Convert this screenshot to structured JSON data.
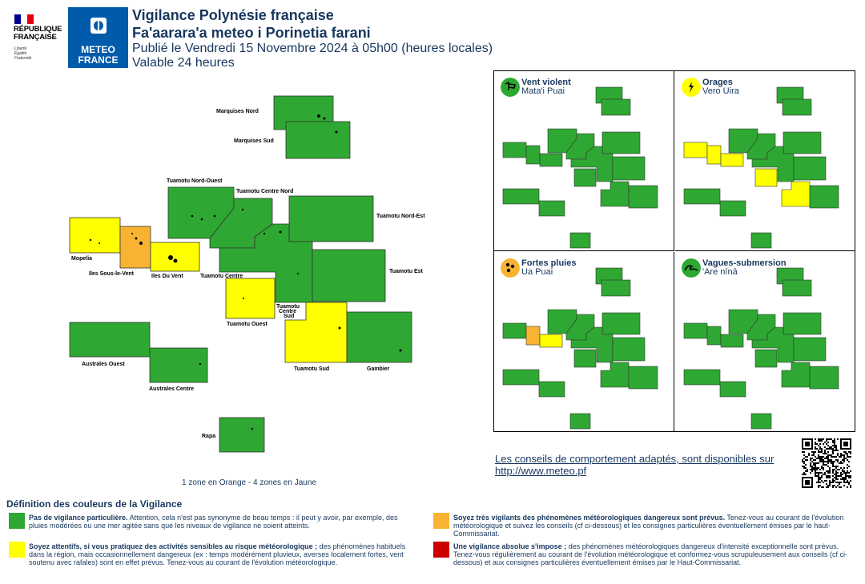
{
  "header": {
    "republique_lines": [
      "RÉPUBLIQUE",
      "FRANÇAISE"
    ],
    "republique_motto": [
      "Liberté",
      "Égalité",
      "Fraternité"
    ],
    "meteo_logo_lines": [
      "METEO",
      "FRANCE"
    ],
    "title_fr": "Vigilance Polynésie française",
    "title_tah": "Fa'aarara'a meteo i Porinetia farani",
    "published": "Publié le Vendredi 15 Novembre 2024 à 05h00 (heures locales)",
    "validity": "Valable 24 heures"
  },
  "colors": {
    "green": "#2ea832",
    "yellow": "#ffff00",
    "orange": "#f8b333",
    "red": "#cc0000",
    "text": "#17375e",
    "meteo_blue": "#005baa"
  },
  "zones": [
    {
      "name": "Marquises Nord",
      "level": "green"
    },
    {
      "name": "Marquises Sud",
      "level": "green"
    },
    {
      "name": "Tuamotu Nord-Ouest",
      "level": "green"
    },
    {
      "name": "Tuamotu Centre Nord",
      "level": "green"
    },
    {
      "name": "Tuamotu Nord-Est",
      "level": "green"
    },
    {
      "name": "Mopelia",
      "level": "yellow"
    },
    {
      "name": "Iles Sous-le-Vent",
      "level": "orange"
    },
    {
      "name": "Iles Du Vent",
      "level": "yellow"
    },
    {
      "name": "Tuamotu Centre",
      "level": "green"
    },
    {
      "name": "Tuamotu Est",
      "level": "green"
    },
    {
      "name": "Tuamotu Ouest",
      "level": "yellow"
    },
    {
      "name": "Tuamotu Centre Sud",
      "level": "green"
    },
    {
      "name": "Australes Ouest",
      "level": "green"
    },
    {
      "name": "Australes Centre",
      "level": "green"
    },
    {
      "name": "Tuamotu Sud",
      "level": "yellow"
    },
    {
      "name": "Gambier",
      "level": "green"
    },
    {
      "name": "Rapa",
      "level": "green"
    }
  ],
  "label_tuamotu_centre_sud": [
    "Tuamotu",
    "Centre",
    "Sud"
  ],
  "phenomena": [
    {
      "title": "Vent violent",
      "subtitle": "Mata'i Puai",
      "icon": "wind-icon",
      "icon_level": "green",
      "levels": {
        "mopelia": "green",
        "isv": "green",
        "idv": "green",
        "tuamotu_ouest": "green",
        "tuamotu_sud": "green"
      }
    },
    {
      "title": "Orages",
      "subtitle": "Vero Uira",
      "icon": "lightning-icon",
      "icon_level": "yellow",
      "levels": {
        "mopelia": "yellow",
        "isv": "yellow",
        "idv": "yellow",
        "tuamotu_ouest": "yellow",
        "tuamotu_sud": "yellow"
      }
    },
    {
      "title": "Fortes pluies",
      "subtitle": "Ua Puai",
      "icon": "rain-icon",
      "icon_level": "orange",
      "levels": {
        "mopelia": "green",
        "isv": "orange",
        "idv": "yellow",
        "tuamotu_ouest": "green",
        "tuamotu_sud": "green"
      }
    },
    {
      "title": "Vagues-submersion",
      "subtitle": "'Are nīnā",
      "icon": "wave-icon",
      "icon_level": "green",
      "levels": {
        "mopelia": "green",
        "isv": "green",
        "idv": "green",
        "tuamotu_ouest": "green",
        "tuamotu_sud": "green"
      }
    }
  ],
  "advice_text": "Les conseils de comportement adaptés, sont disponibles sur",
  "advice_link": "http://www.meteo.pf",
  "summary": "1 zone en Orange - 4 zones en Jaune",
  "definitions": {
    "title": "Définition des couleurs de la Vigilance",
    "items": [
      {
        "level": "green",
        "bold": "Pas de vigilance particulière.",
        "text": " Attention, cela n'est pas synonyme de beau temps : il peut y avoir, par exemple, des pluies modérées ou une mer agitée sans que les niveaux de vigilance ne soient atteints."
      },
      {
        "level": "orange",
        "bold": "Soyez très vigilants des phénomènes météorologiques dangereux sont prévus.",
        "text": " Tenez-vous au courant de l'évolution météorologique et suivez les conseils (cf ci-dessous) et les consignes particulières éventuellement émises par le haut-Commissariat."
      },
      {
        "level": "yellow",
        "bold": "Soyez attentifs, si vous pratiquez des activités sensibles au risque météorologique ;",
        "text": " des phénomènes habituels dans la région, mais occasionnellement dangereux (ex : temps modérément pluvieux, averses localement fortes, vent soutenu avec rafales) sont en effet prévus. Tenez-vous au courant de l'évolution météorologique."
      },
      {
        "level": "red",
        "bold": "Une vigilance absolue s'impose ;",
        "text": " des phénomènes météorologiques dangereux d'intensité exceptionnelle sont prévus. Tenez-vous régulièrement au courant de l'évolution météorologique et conformez-vous scrupuleusement aux conseils (cf ci-dessous) et aux consignes particulières éventuellement émises par le Haut-Commissariat."
      }
    ]
  }
}
